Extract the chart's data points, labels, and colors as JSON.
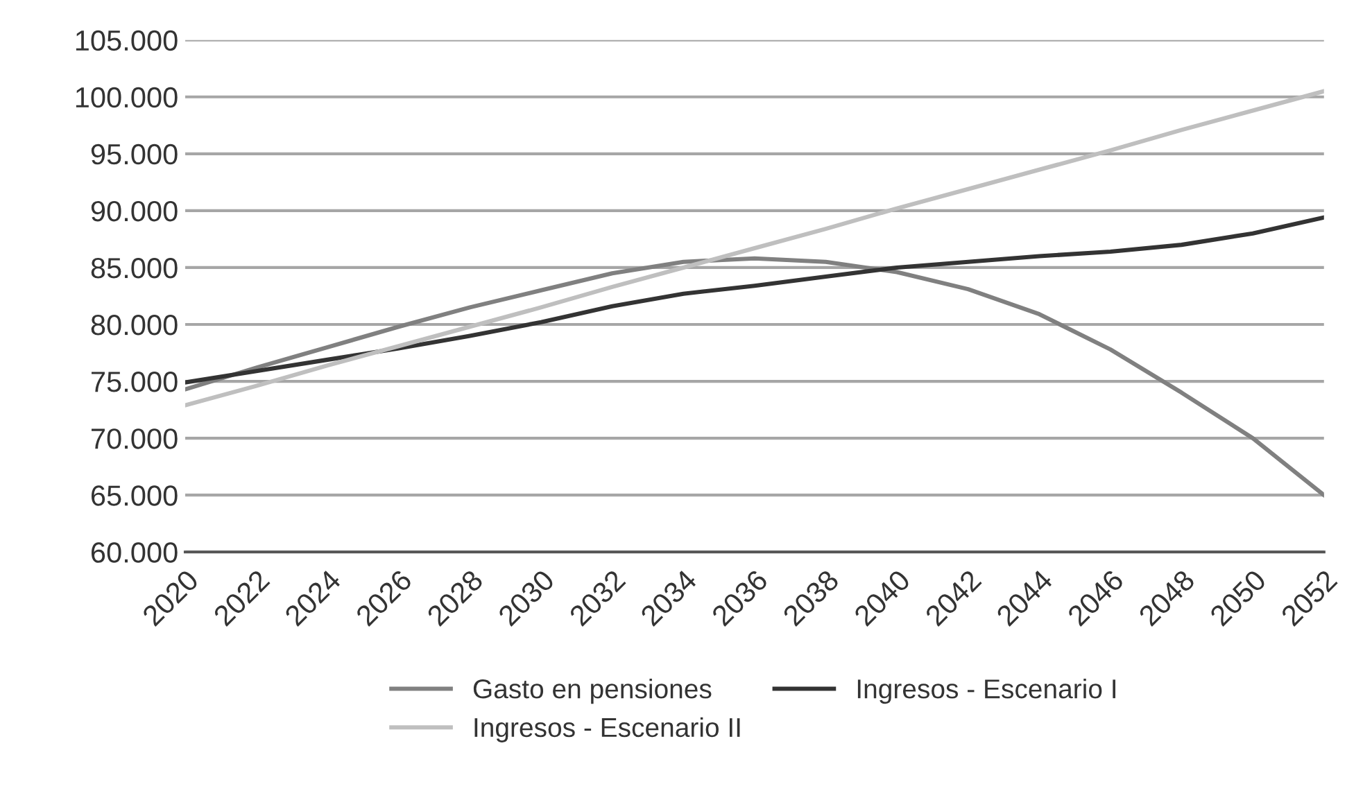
{
  "chart_data": {
    "type": "line",
    "x": [
      2020,
      2022,
      2024,
      2026,
      2028,
      2030,
      2032,
      2034,
      2036,
      2038,
      2040,
      2042,
      2044,
      2046,
      2048,
      2050,
      2052
    ],
    "series": [
      {
        "name": "Gasto en pensiones",
        "color": "#808080",
        "values": [
          74300,
          76200,
          78000,
          79800,
          81500,
          83000,
          84500,
          85500,
          85800,
          85500,
          84600,
          83100,
          80900,
          77800,
          74000,
          70000,
          65000
        ]
      },
      {
        "name": "Ingresos - Escenario I",
        "color": "#333333",
        "values": [
          74900,
          75900,
          76900,
          77900,
          79000,
          80200,
          81600,
          82700,
          83400,
          84200,
          85000,
          85500,
          86000,
          86400,
          87000,
          88000,
          89400
        ]
      },
      {
        "name": "Ingresos - Escenario II",
        "color": "#bfbfbf",
        "values": [
          72900,
          74600,
          76400,
          78100,
          79800,
          81500,
          83300,
          85000,
          86700,
          88400,
          90200,
          91900,
          93600,
          95300,
          97100,
          98800,
          100500
        ]
      }
    ],
    "xlim": [
      2020,
      2052
    ],
    "xticks": [
      2020,
      2022,
      2024,
      2026,
      2028,
      2030,
      2032,
      2034,
      2036,
      2038,
      2040,
      2042,
      2044,
      2046,
      2048,
      2050,
      2052
    ],
    "ylim": [
      60000,
      105000
    ],
    "yticks": [
      {
        "value": 60000,
        "label": "60.000"
      },
      {
        "value": 65000,
        "label": "65.000"
      },
      {
        "value": 70000,
        "label": "70.000"
      },
      {
        "value": 75000,
        "label": "75.000"
      },
      {
        "value": 80000,
        "label": "80.000"
      },
      {
        "value": 85000,
        "label": "85.000"
      },
      {
        "value": 90000,
        "label": "90.000"
      },
      {
        "value": 95000,
        "label": "95.000"
      },
      {
        "value": 100000,
        "label": "100.000"
      },
      {
        "value": 105000,
        "label": "105.000"
      }
    ],
    "grid": "y",
    "legend": "bottom",
    "marker": "none",
    "line_style": "solid"
  }
}
